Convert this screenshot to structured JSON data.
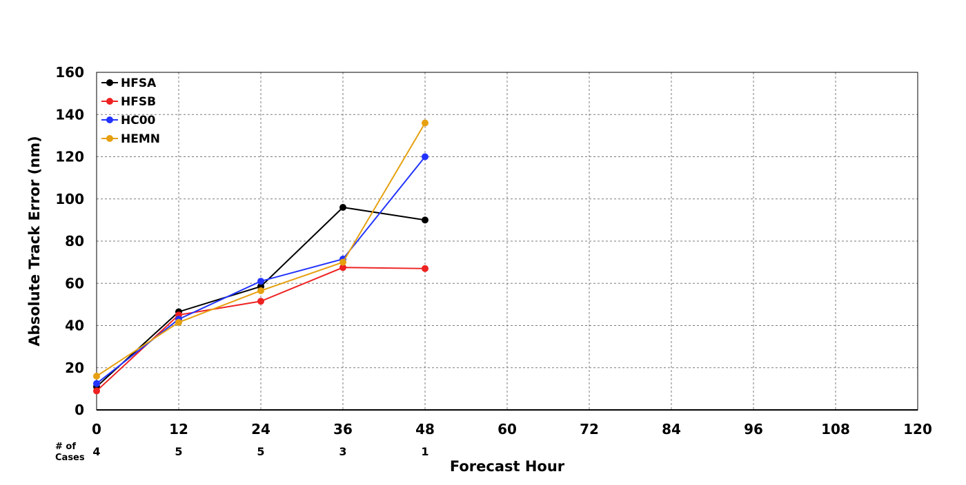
{
  "chart_data": {
    "type": "line",
    "xlabel": "Forecast Hour",
    "ylabel": "Absolute Track Error (nm)",
    "xlim": [
      0,
      120
    ],
    "ylim": [
      0,
      160
    ],
    "x_ticks": [
      0,
      12,
      24,
      36,
      48,
      60,
      72,
      84,
      96,
      108,
      120
    ],
    "y_ticks": [
      0,
      20,
      40,
      60,
      80,
      100,
      120,
      140,
      160
    ],
    "grid": true,
    "legend_position": "top-left",
    "x": [
      0,
      12,
      24,
      36,
      48
    ],
    "series": [
      {
        "name": "HFSA",
        "color": "#000000",
        "values": [
          11,
          46.5,
          58.5,
          96,
          90
        ]
      },
      {
        "name": "HFSB",
        "color": "#ee2222",
        "values": [
          9,
          45,
          51.5,
          67.5,
          67
        ]
      },
      {
        "name": "HC00",
        "color": "#2233ff",
        "values": [
          12.5,
          43,
          61,
          71.5,
          120
        ]
      },
      {
        "name": "HEMN",
        "color": "#e6a010",
        "values": [
          16,
          41.5,
          56.5,
          70,
          136
        ]
      }
    ],
    "cases": {
      "label_line1": "# of",
      "label_line2": "Cases",
      "counts": [
        "4",
        "5",
        "5",
        "3",
        "1"
      ]
    }
  }
}
